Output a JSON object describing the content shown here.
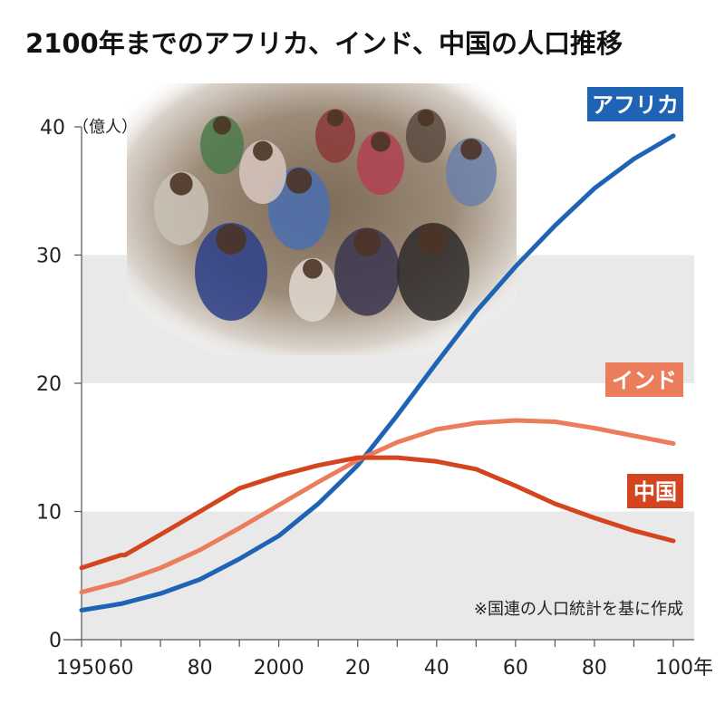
{
  "chart_data": {
    "type": "line",
    "title": "2100年までのアフリカ、インド、中国の人口推移",
    "y_unit": "（億人）",
    "note": "※国連の人口統計を基に作成",
    "x_tick_labels": [
      "1950",
      "60",
      "80",
      "2000",
      "20",
      "40",
      "60",
      "80",
      "100年"
    ],
    "x_tick_years": [
      1950,
      1960,
      1980,
      2000,
      2020,
      2040,
      2060,
      2080,
      2100
    ],
    "y_ticks": [
      0,
      10,
      20,
      30,
      40
    ],
    "xlim": [
      1950,
      2100
    ],
    "ylim": [
      0,
      40
    ],
    "grid_bands": [
      [
        0,
        10
      ],
      [
        20,
        30
      ]
    ],
    "photo_note": "photo of a crowd of children and adults (inset)",
    "series": [
      {
        "name": "アフリカ",
        "color": "#1f64b4",
        "x": [
          1950,
          1960,
          1970,
          1980,
          1990,
          2000,
          2010,
          2020,
          2030,
          2040,
          2050,
          2060,
          2070,
          2080,
          2090,
          2100
        ],
        "values": [
          2.3,
          2.8,
          3.6,
          4.7,
          6.3,
          8.1,
          10.6,
          13.6,
          17.5,
          21.6,
          25.6,
          29.1,
          32.3,
          35.2,
          37.5,
          39.3
        ]
      },
      {
        "name": "インド",
        "color": "#eb7d5c",
        "x": [
          1950,
          1960,
          1970,
          1980,
          1990,
          2000,
          2010,
          2020,
          2030,
          2040,
          2050,
          2060,
          2070,
          2080,
          2090,
          2100
        ],
        "values": [
          3.7,
          4.5,
          5.6,
          7.0,
          8.7,
          10.5,
          12.3,
          14.0,
          15.4,
          16.4,
          16.9,
          17.1,
          17.0,
          16.5,
          15.9,
          15.3
        ]
      },
      {
        "name": "中国",
        "color": "#d4451f",
        "x": [
          1950,
          1960,
          1961,
          1970,
          1980,
          1990,
          2000,
          2010,
          2020,
          2030,
          2040,
          2050,
          2060,
          2070,
          2080,
          2090,
          2100
        ],
        "values": [
          5.6,
          6.6,
          6.6,
          8.2,
          10.0,
          11.8,
          12.8,
          13.6,
          14.2,
          14.2,
          13.9,
          13.3,
          12.0,
          10.6,
          9.5,
          8.5,
          7.7
        ]
      }
    ]
  }
}
